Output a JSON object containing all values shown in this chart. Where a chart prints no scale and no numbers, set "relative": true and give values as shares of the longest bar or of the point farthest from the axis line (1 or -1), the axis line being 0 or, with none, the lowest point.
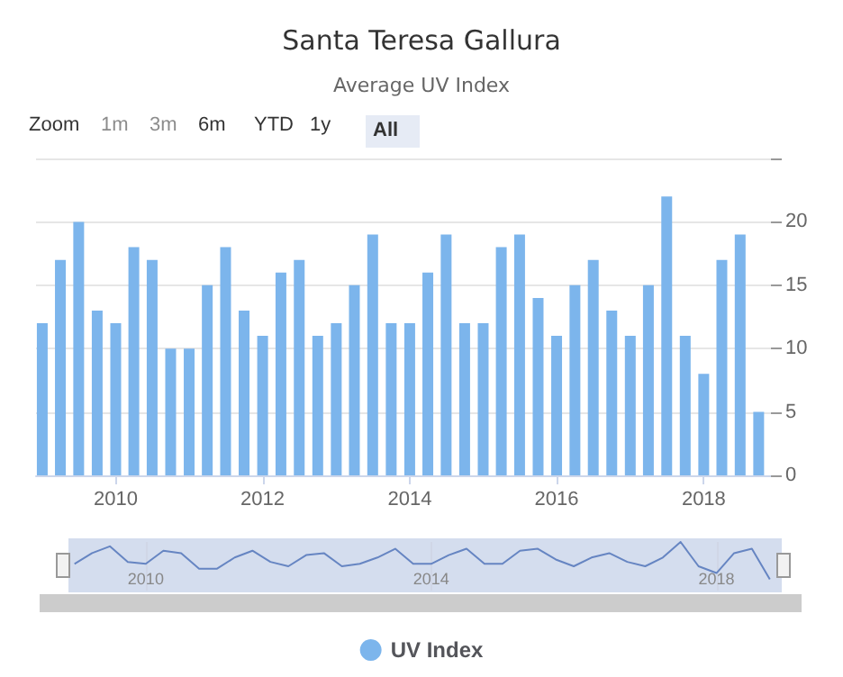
{
  "chart_data": [
    {
      "type": "bar",
      "title": "Santa Teresa Gallura",
      "subtitle": "Average UV Index",
      "annotations": [
        "Zoom",
        "1m",
        "3m",
        "6m",
        "YTD",
        "1y",
        "All"
      ],
      "x": [
        "2009-01",
        "2009-04",
        "2009-07",
        "2009-10",
        "2010-01",
        "2010-04",
        "2010-07",
        "2010-10",
        "2011-01",
        "2011-04",
        "2011-07",
        "2011-10",
        "2012-01",
        "2012-04",
        "2012-07",
        "2012-10",
        "2013-01",
        "2013-04",
        "2013-07",
        "2013-10",
        "2014-01",
        "2014-04",
        "2014-07",
        "2014-10",
        "2015-01",
        "2015-04",
        "2015-07",
        "2015-10",
        "2016-01",
        "2016-04",
        "2016-07",
        "2016-10",
        "2017-01",
        "2017-04",
        "2017-07",
        "2017-10",
        "2018-01",
        "2018-04",
        "2018-07",
        "2018-10"
      ],
      "series": [
        {
          "name": "UV Index",
          "color": "#7cb5ec",
          "values": [
            12,
            17,
            20,
            13,
            12,
            18,
            17,
            10,
            10,
            15,
            18,
            13,
            11,
            16,
            17,
            11,
            12,
            15,
            19,
            12,
            12,
            16,
            19,
            12,
            12,
            18,
            19,
            14,
            11,
            15,
            17,
            13,
            11,
            15,
            22,
            11,
            8,
            17,
            19,
            5
          ]
        }
      ],
      "xlim": [
        "2008-12",
        "2018-12"
      ],
      "xticks": [
        "2010",
        "2012",
        "2014",
        "2016",
        "2018"
      ],
      "ylim": [
        0,
        25
      ],
      "yticks": [
        0,
        5,
        10,
        15,
        20,
        {
          "value": 25,
          "label": null
        }
      ],
      "grid": "y",
      "legend": "bottom"
    },
    {
      "type": "line",
      "relative": true,
      "x": [
        "2009-01",
        "2009-04",
        "2009-07",
        "2009-10",
        "2010-01",
        "2010-04",
        "2010-07",
        "2010-10",
        "2011-01",
        "2011-04",
        "2011-07",
        "2011-10",
        "2012-01",
        "2012-04",
        "2012-07",
        "2012-10",
        "2013-01",
        "2013-04",
        "2013-07",
        "2013-10",
        "2014-01",
        "2014-04",
        "2014-07",
        "2014-10",
        "2015-01",
        "2015-04",
        "2015-07",
        "2015-10",
        "2016-01",
        "2016-04",
        "2016-07",
        "2016-10",
        "2017-01",
        "2017-04",
        "2017-07",
        "2017-10",
        "2018-01",
        "2018-04",
        "2018-07",
        "2018-10"
      ],
      "series": [
        {
          "color": "#6685c2",
          "values": [
            0.55,
            0.77,
            0.91,
            0.59,
            0.55,
            0.82,
            0.77,
            0.45,
            0.45,
            0.68,
            0.82,
            0.59,
            0.5,
            0.73,
            0.77,
            0.5,
            0.55,
            0.68,
            0.86,
            0.55,
            0.55,
            0.73,
            0.86,
            0.55,
            0.55,
            0.82,
            0.86,
            0.64,
            0.5,
            0.68,
            0.77,
            0.59,
            0.5,
            0.68,
            1,
            0.5,
            0.36,
            0.77,
            0.86,
            0.23
          ]
        }
      ],
      "xlim": [
        "2008-12",
        "2018-12"
      ],
      "xticks": [
        "2010",
        "2014",
        "2018"
      ],
      "grid": "x"
    }
  ]
}
